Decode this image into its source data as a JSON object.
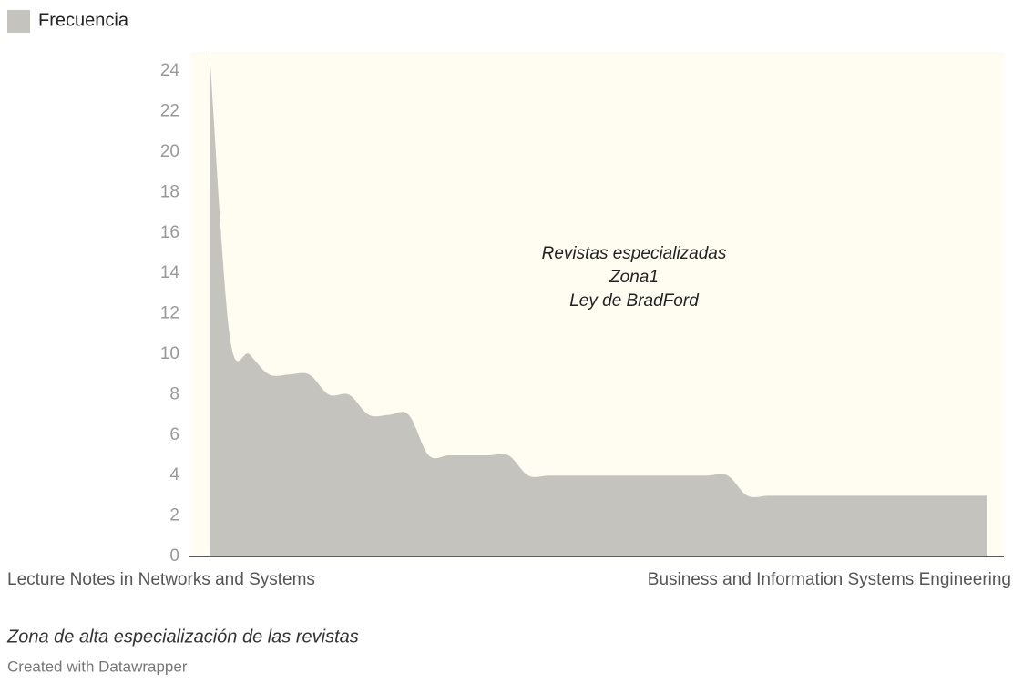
{
  "chart_data": {
    "type": "area",
    "categories": [
      "Lecture Notes in Networks and Systems",
      null,
      null,
      null,
      null,
      null,
      null,
      null,
      null,
      null,
      null,
      null,
      null,
      null,
      null,
      null,
      null,
      null,
      null,
      null,
      null,
      null,
      null,
      null,
      null,
      null,
      null,
      null,
      null,
      null,
      null,
      null,
      null,
      null,
      null,
      null,
      null,
      null,
      null,
      "Business and Information Systems Engineering"
    ],
    "series": [
      {
        "name": "Frecuencia",
        "color": "#c5c3bd",
        "values": [
          25,
          11,
          10,
          9,
          9,
          9,
          8,
          8,
          7,
          7,
          7,
          5,
          5,
          5,
          5,
          5,
          4,
          4,
          4,
          4,
          4,
          4,
          4,
          4,
          4,
          4,
          4,
          3,
          3,
          3,
          3,
          3,
          3,
          3,
          3,
          3,
          3,
          3,
          3,
          3
        ]
      }
    ],
    "ylim": [
      0,
      25
    ],
    "yticks": [
      0,
      2,
      4,
      6,
      8,
      10,
      12,
      14,
      16,
      18,
      20,
      22,
      24
    ],
    "annotation": [
      "Revistas especializadas",
      "Zona1",
      "Ley de BradFord"
    ],
    "description": "Zona de alta especialización de las revistas",
    "credit": "Created with Datawrapper"
  }
}
